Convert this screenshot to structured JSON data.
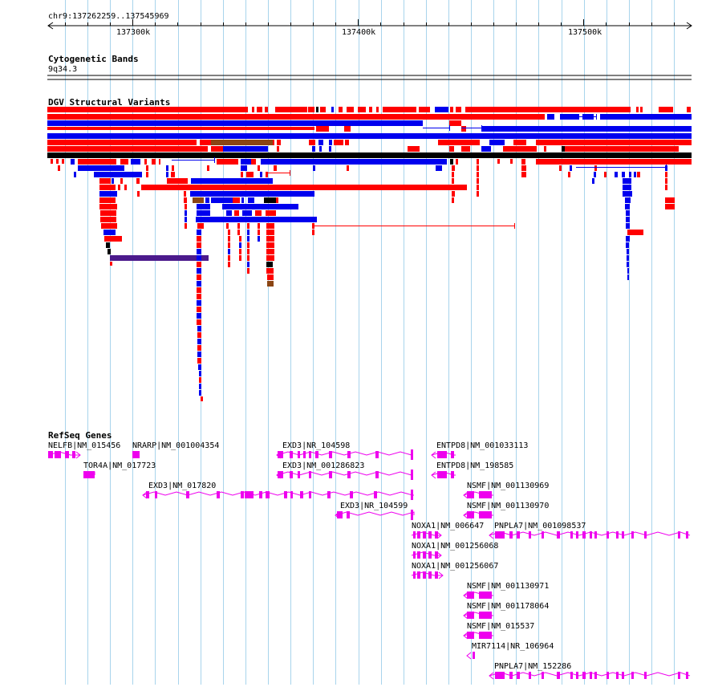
{
  "locus": "chr9:137262259..137545969",
  "ruler": {
    "ticks": [
      "137300k",
      "137400k",
      "137500k"
    ]
  },
  "tracks": {
    "cytoband": {
      "title": "Cytogenetic Bands",
      "band": "9q34.3"
    },
    "dgv": {
      "title": "DGV Structural Variants"
    },
    "refseq": {
      "title": "RefSeq Genes",
      "labels": [
        "NELFB|NM_015456",
        "NRARP|NM_001004354",
        "TOR4A|NM_017723",
        "EXD3|NR_104598",
        "EXD3|NM_001286823",
        "EXD3|NM_017820",
        "EXD3|NR_104599",
        "ENTPD8|NM_001033113",
        "ENTPD8|NM_198585",
        "NSMF|NM_001130969",
        "NSMF|NM_001130970",
        "NOXA1|NM_006647",
        "NOXA1|NM_001256068",
        "NOXA1|NM_001256067",
        "PNPLA7|NM_001098537",
        "NSMF|NM_001130971",
        "NSMF|NM_001178064",
        "NSMF|NM_015537",
        "MIR7114|NR_106964",
        "PNPLA7|NM_152286"
      ]
    }
  },
  "colors": {
    "grid": "#a8d4ec",
    "loss": "#ff0000",
    "gain": "#0000ee",
    "gain_loss": "#8b4513",
    "other": "#000000",
    "inversion": "#4b1a8c",
    "gene": "#ee00ee"
  }
}
